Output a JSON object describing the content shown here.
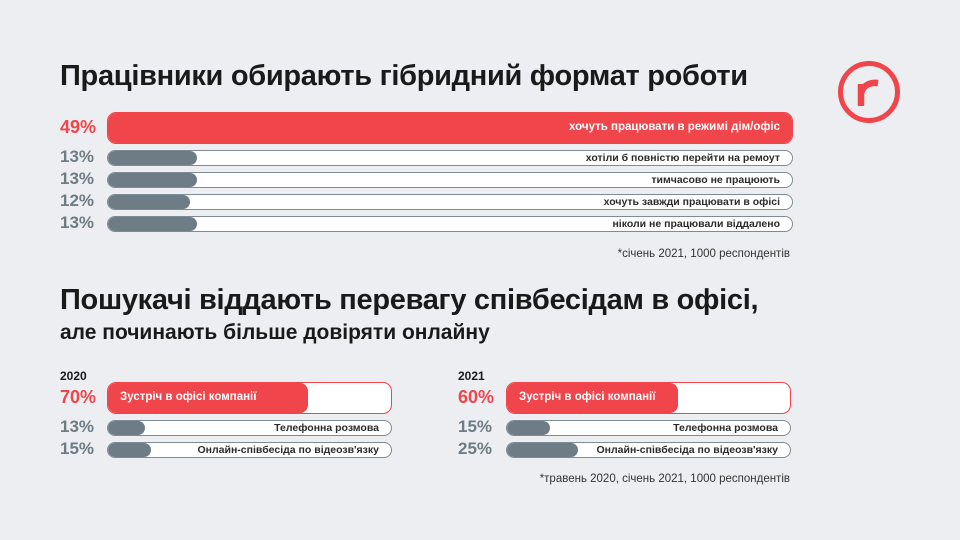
{
  "title1": "Працівники обирають гібридний формат роботи",
  "title2": "Пошукачі віддають перевагу співбесідам в офісі,",
  "title2_sub": "але починають більше довіряти онлайну",
  "note1": "*січень 2021, 1000 респондентів",
  "note2": "*травень 2020, січень 2021, 1000 респондентів",
  "colors": {
    "accent": "#f0454a",
    "bar": "#6e7c86",
    "background": "#eceef1"
  },
  "chart_data": [
    {
      "type": "bar",
      "orientation": "horizontal",
      "title": "Працівники обирають гібридний формат роботи",
      "note": "*січень 2021, 1000 респондентів",
      "unit": "%",
      "items": [
        {
          "pct_label": "49%",
          "label": "хочуть працювати в режимі дім/офіс",
          "value": 49,
          "highlight": true
        },
        {
          "pct_label": "13%",
          "label": "хотіли б повністю перейти на ремоут",
          "value": 13
        },
        {
          "pct_label": "13%",
          "label": "тимчасово не працюють",
          "value": 13
        },
        {
          "pct_label": "12%",
          "label": "хочуть завжди працювати в офісі",
          "value": 12
        },
        {
          "pct_label": "13%",
          "label": "ніколи не працювали віддалено",
          "value": 13
        }
      ]
    },
    {
      "type": "bar",
      "orientation": "horizontal",
      "year": "2020",
      "unit": "%",
      "items": [
        {
          "pct_label": "70%",
          "label": "Зустріч в офісі компанії",
          "value": 70,
          "highlight": true
        },
        {
          "pct_label": "13%",
          "label": "Телефонна розмова",
          "value": 13
        },
        {
          "pct_label": "15%",
          "label": "Онлайн-співбесіда по відеозв'язку",
          "value": 15
        }
      ]
    },
    {
      "type": "bar",
      "orientation": "horizontal",
      "year": "2021",
      "unit": "%",
      "items": [
        {
          "pct_label": "60%",
          "label": "Зустріч в офісі компанії",
          "value": 60,
          "highlight": true
        },
        {
          "pct_label": "15%",
          "label": "Телефонна розмова",
          "value": 15
        },
        {
          "pct_label": "25%",
          "label": "Онлайн-співбесіда по відеозв'язку",
          "value": 25
        }
      ]
    }
  ]
}
